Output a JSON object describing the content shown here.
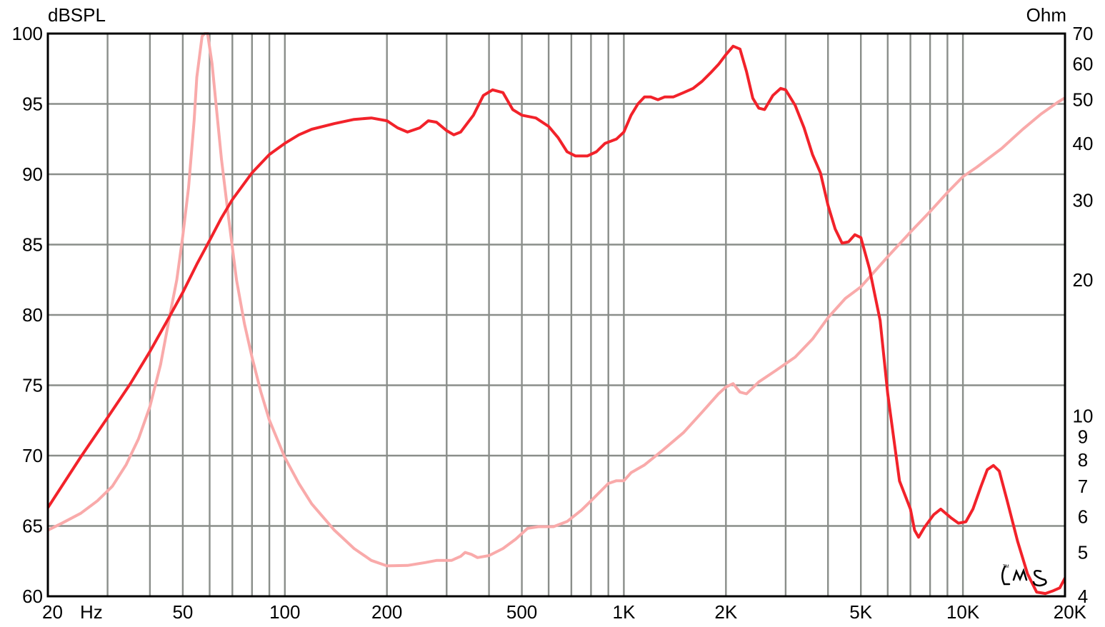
{
  "chart_data": {
    "type": "line",
    "left_unit": "dBSPL",
    "right_unit": "Ohm",
    "x_scale": "log",
    "xlim": [
      20,
      20000
    ],
    "ylim_left": [
      60,
      100
    ],
    "ylim_right_log": [
      4,
      70
    ],
    "x_tick_labels": [
      {
        "value": 20,
        "label": "20"
      },
      {
        "value": 50,
        "label": "50"
      },
      {
        "value": 100,
        "label": "100"
      },
      {
        "value": 200,
        "label": "200"
      },
      {
        "value": 500,
        "label": "500"
      },
      {
        "value": 1000,
        "label": "1K"
      },
      {
        "value": 2000,
        "label": "2K"
      },
      {
        "value": 5000,
        "label": "5K"
      },
      {
        "value": 10000,
        "label": "10K"
      },
      {
        "value": 20000,
        "label": "20K"
      }
    ],
    "x_unit_label": "Hz",
    "y_left_ticks": [
      100,
      95,
      90,
      85,
      80,
      75,
      70,
      65,
      60
    ],
    "y_right_ticks": [
      70,
      60,
      50,
      40,
      30,
      20,
      10,
      9,
      8,
      7,
      6,
      5,
      4
    ],
    "grid": true,
    "logo": "LMS",
    "series": [
      {
        "axis": "left",
        "color": "#f2222a",
        "points": [
          [
            20,
            66.3
          ],
          [
            25,
            69.9
          ],
          [
            30,
            72.7
          ],
          [
            35,
            75.1
          ],
          [
            40,
            77.4
          ],
          [
            45,
            79.6
          ],
          [
            50,
            81.6
          ],
          [
            55,
            83.6
          ],
          [
            60,
            85.3
          ],
          [
            65,
            86.9
          ],
          [
            70,
            88.2
          ],
          [
            80,
            90.1
          ],
          [
            90,
            91.4
          ],
          [
            100,
            92.2
          ],
          [
            110,
            92.8
          ],
          [
            120,
            93.2
          ],
          [
            140,
            93.6
          ],
          [
            160,
            93.9
          ],
          [
            180,
            94.0
          ],
          [
            200,
            93.8
          ],
          [
            215,
            93.3
          ],
          [
            230,
            93.0
          ],
          [
            250,
            93.3
          ],
          [
            265,
            93.8
          ],
          [
            280,
            93.7
          ],
          [
            300,
            93.1
          ],
          [
            315,
            92.8
          ],
          [
            330,
            93.0
          ],
          [
            360,
            94.2
          ],
          [
            385,
            95.6
          ],
          [
            410,
            96.0
          ],
          [
            440,
            95.8
          ],
          [
            470,
            94.6
          ],
          [
            500,
            94.2
          ],
          [
            550,
            94.0
          ],
          [
            600,
            93.4
          ],
          [
            640,
            92.6
          ],
          [
            680,
            91.6
          ],
          [
            720,
            91.3
          ],
          [
            780,
            91.3
          ],
          [
            830,
            91.6
          ],
          [
            880,
            92.2
          ],
          [
            950,
            92.5
          ],
          [
            1000,
            93.0
          ],
          [
            1050,
            94.2
          ],
          [
            1100,
            95.0
          ],
          [
            1150,
            95.5
          ],
          [
            1200,
            95.5
          ],
          [
            1260,
            95.3
          ],
          [
            1320,
            95.5
          ],
          [
            1400,
            95.5
          ],
          [
            1500,
            95.8
          ],
          [
            1600,
            96.1
          ],
          [
            1700,
            96.6
          ],
          [
            1800,
            97.2
          ],
          [
            1900,
            97.8
          ],
          [
            2000,
            98.5
          ],
          [
            2100,
            99.1
          ],
          [
            2200,
            98.9
          ],
          [
            2300,
            97.3
          ],
          [
            2400,
            95.4
          ],
          [
            2500,
            94.7
          ],
          [
            2600,
            94.6
          ],
          [
            2750,
            95.6
          ],
          [
            2900,
            96.1
          ],
          [
            3000,
            96.0
          ],
          [
            3200,
            94.9
          ],
          [
            3400,
            93.3
          ],
          [
            3600,
            91.4
          ],
          [
            3800,
            90.1
          ],
          [
            4000,
            87.8
          ],
          [
            4200,
            86.1
          ],
          [
            4400,
            85.1
          ],
          [
            4600,
            85.2
          ],
          [
            4800,
            85.7
          ],
          [
            5000,
            85.5
          ],
          [
            5300,
            83.3
          ],
          [
            5700,
            79.6
          ],
          [
            6000,
            74.4
          ],
          [
            6500,
            68.2
          ],
          [
            7000,
            66.2
          ],
          [
            7200,
            64.7
          ],
          [
            7400,
            64.2
          ],
          [
            7700,
            64.9
          ],
          [
            8200,
            65.8
          ],
          [
            8600,
            66.2
          ],
          [
            9200,
            65.6
          ],
          [
            9700,
            65.2
          ],
          [
            10200,
            65.3
          ],
          [
            10700,
            66.2
          ],
          [
            11300,
            67.8
          ],
          [
            11800,
            69.0
          ],
          [
            12300,
            69.3
          ],
          [
            12800,
            68.9
          ],
          [
            13500,
            66.8
          ],
          [
            14500,
            63.9
          ],
          [
            15500,
            61.6
          ],
          [
            16500,
            60.3
          ],
          [
            17500,
            60.2
          ],
          [
            18500,
            60.4
          ],
          [
            19300,
            60.6
          ],
          [
            20000,
            61.3
          ]
        ]
      },
      {
        "axis": "right",
        "color": "#f9aaaa",
        "points": [
          [
            20,
            5.6
          ],
          [
            22,
            5.8
          ],
          [
            25,
            6.1
          ],
          [
            28,
            6.5
          ],
          [
            31,
            7.0
          ],
          [
            34,
            7.8
          ],
          [
            37,
            8.9
          ],
          [
            40,
            10.5
          ],
          [
            43,
            13
          ],
          [
            46,
            17
          ],
          [
            48,
            20
          ],
          [
            50,
            25
          ],
          [
            52,
            32
          ],
          [
            54,
            45
          ],
          [
            55,
            56
          ],
          [
            57,
            69
          ],
          [
            59,
            71
          ],
          [
            61,
            60
          ],
          [
            63,
            47
          ],
          [
            65,
            37
          ],
          [
            68,
            28
          ],
          [
            72,
            20
          ],
          [
            76,
            16
          ],
          [
            80,
            13.5
          ],
          [
            85,
            11.3
          ],
          [
            90,
            9.8
          ],
          [
            100,
            8.1
          ],
          [
            110,
            7.1
          ],
          [
            120,
            6.4
          ],
          [
            140,
            5.6
          ],
          [
            160,
            5.1
          ],
          [
            180,
            4.8
          ],
          [
            200,
            4.67
          ],
          [
            230,
            4.68
          ],
          [
            260,
            4.75
          ],
          [
            280,
            4.8
          ],
          [
            310,
            4.8
          ],
          [
            330,
            4.9
          ],
          [
            340,
            5.0
          ],
          [
            355,
            4.95
          ],
          [
            370,
            4.87
          ],
          [
            400,
            4.92
          ],
          [
            440,
            5.1
          ],
          [
            480,
            5.35
          ],
          [
            520,
            5.65
          ],
          [
            560,
            5.7
          ],
          [
            620,
            5.7
          ],
          [
            680,
            5.85
          ],
          [
            750,
            6.2
          ],
          [
            800,
            6.5
          ],
          [
            900,
            7.1
          ],
          [
            950,
            7.2
          ],
          [
            1000,
            7.2
          ],
          [
            1050,
            7.5
          ],
          [
            1150,
            7.8
          ],
          [
            1300,
            8.4
          ],
          [
            1500,
            9.2
          ],
          [
            1700,
            10.2
          ],
          [
            1900,
            11.2
          ],
          [
            2000,
            11.6
          ],
          [
            2100,
            11.8
          ],
          [
            2200,
            11.3
          ],
          [
            2300,
            11.2
          ],
          [
            2500,
            11.9
          ],
          [
            2800,
            12.6
          ],
          [
            3200,
            13.5
          ],
          [
            3600,
            14.8
          ],
          [
            4000,
            16.5
          ],
          [
            4500,
            18.2
          ],
          [
            5000,
            19.3
          ],
          [
            6000,
            22.5
          ],
          [
            7000,
            25.5
          ],
          [
            8000,
            28.3
          ],
          [
            9000,
            31.2
          ],
          [
            10000,
            33.8
          ],
          [
            11000,
            35.5
          ],
          [
            13000,
            39
          ],
          [
            15000,
            43
          ],
          [
            17000,
            46.5
          ],
          [
            19000,
            49.3
          ],
          [
            20000,
            50.5
          ]
        ]
      }
    ]
  }
}
